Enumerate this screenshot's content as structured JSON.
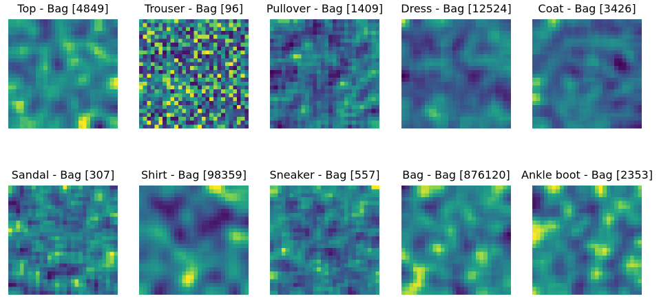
{
  "chart_data": {
    "type": "heatmap",
    "grid_size": 28,
    "colormap": "viridis",
    "grid": false,
    "axes_visible": false,
    "panels": [
      {
        "true_class": "Top",
        "predicted_class": "Bag",
        "count": 4849,
        "title": "Top - Bag [4849]"
      },
      {
        "true_class": "Trouser",
        "predicted_class": "Bag",
        "count": 96,
        "title": "Trouser - Bag [96]"
      },
      {
        "true_class": "Pullover",
        "predicted_class": "Bag",
        "count": 1409,
        "title": "Pullover - Bag [1409]"
      },
      {
        "true_class": "Dress",
        "predicted_class": "Bag",
        "count": 12524,
        "title": "Dress - Bag [12524]"
      },
      {
        "true_class": "Coat",
        "predicted_class": "Bag",
        "count": 3426,
        "title": "Coat - Bag [3426]"
      },
      {
        "true_class": "Sandal",
        "predicted_class": "Bag",
        "count": 307,
        "title": "Sandal - Bag [307]"
      },
      {
        "true_class": "Shirt",
        "predicted_class": "Bag",
        "count": 98359,
        "title": "Shirt - Bag [98359]"
      },
      {
        "true_class": "Sneaker",
        "predicted_class": "Bag",
        "count": 557,
        "title": "Sneaker - Bag [557]"
      },
      {
        "true_class": "Bag",
        "predicted_class": "Bag",
        "count": 876120,
        "title": "Bag - Bag [876120]"
      },
      {
        "true_class": "Ankle boot",
        "predicted_class": "Bag",
        "count": 2353,
        "title": "Ankle boot - Bag [2353]"
      }
    ]
  }
}
